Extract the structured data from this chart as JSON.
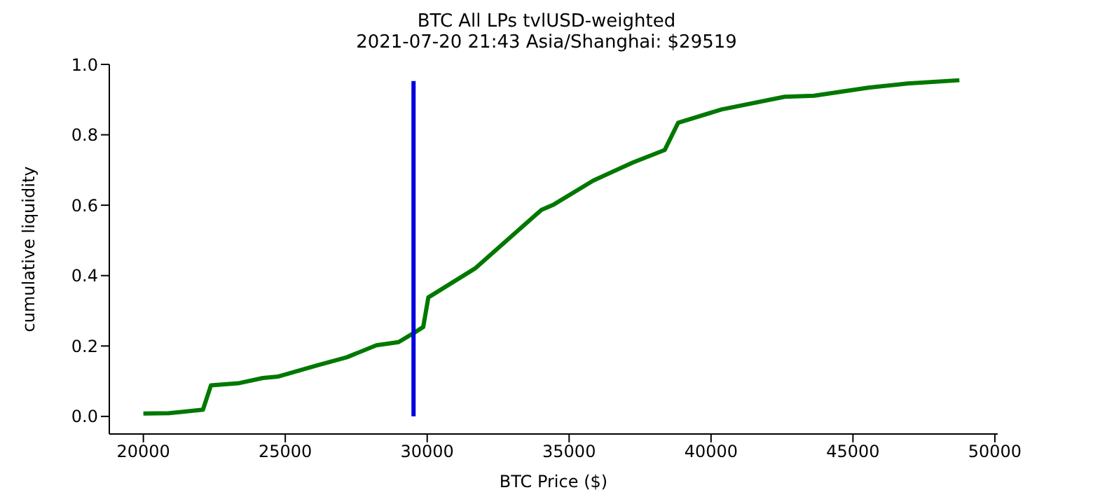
{
  "chart_data": {
    "type": "line",
    "title": "BTC All LPs tvlUSD-weighted",
    "subtitle": "2021-07-20 21:43 Asia/Shanghai: $29519",
    "xlabel": "BTC Price ($)",
    "ylabel": "cumulative liquidity",
    "xlim": [
      18800,
      50100
    ],
    "xticks": [
      20000,
      25000,
      30000,
      35000,
      40000,
      45000,
      50000
    ],
    "ylim": [
      -0.05,
      1.0
    ],
    "yticks": [
      {
        "value": 0,
        "label": "0.0"
      },
      {
        "value": 0.2,
        "label": "0.2"
      },
      {
        "value": 0.4,
        "label": "0.4"
      },
      {
        "value": 0.6,
        "label": "0.6"
      },
      {
        "value": 0.8,
        "label": "0.8"
      },
      {
        "value": 1,
        "label": "1.0"
      }
    ],
    "marker": "none",
    "line_style": "solid",
    "series": [
      {
        "color": "#007800",
        "x": [
          20000,
          20900,
          22100,
          22380,
          23340,
          24210,
          24730,
          26130,
          27170,
          28210,
          28990,
          29510,
          29860,
          30040,
          31680,
          34030,
          34460,
          35850,
          37240,
          38370,
          38840,
          40370,
          42590,
          43630,
          45540,
          46930,
          48750
        ],
        "values": [
          0.008,
          0.009,
          0.019,
          0.088,
          0.094,
          0.109,
          0.113,
          0.145,
          0.168,
          0.202,
          0.211,
          0.236,
          0.254,
          0.338,
          0.42,
          0.587,
          0.602,
          0.67,
          0.721,
          0.757,
          0.834,
          0.872,
          0.908,
          0.911,
          0.934,
          0.946,
          0.955
        ]
      },
      {
        "color": "#0000e0",
        "x": [
          29519,
          29519
        ],
        "values": [
          0,
          0.953
        ]
      }
    ]
  }
}
